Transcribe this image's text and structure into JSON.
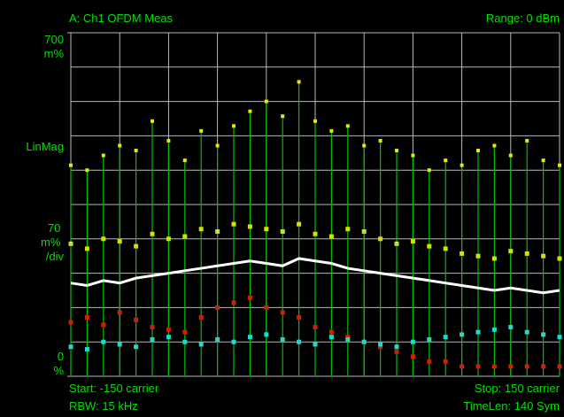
{
  "chart_data": {
    "type": "stem",
    "title": "A: Ch1 OFDM Meas",
    "range_label": "Range: 0 dBm",
    "start_label": "Start: -150  carrier",
    "stop_label": "Stop: 150  carrier",
    "rbw_label": "RBW: 15 kHz",
    "timelen_label": "TimeLen: 140  Sym",
    "scale_label": "LinMag",
    "per_div_label": [
      "70",
      "m%",
      "/div"
    ],
    "xlim": [
      -150,
      150
    ],
    "ylim": [
      0,
      700
    ],
    "yticks": [
      {
        "value": 700,
        "label": [
          "700",
          "m%"
        ]
      },
      {
        "value": 0,
        "label": [
          "0",
          "%"
        ]
      }
    ],
    "grid": {
      "x_divisions": 10,
      "y_divisions": 10
    },
    "x": [
      -150,
      -140,
      -130,
      -120,
      -110,
      -100,
      -90,
      -80,
      -70,
      -60,
      -50,
      -40,
      -30,
      -20,
      -10,
      0,
      10,
      20,
      30,
      40,
      50,
      60,
      70,
      80,
      90,
      100,
      110,
      120,
      130,
      140,
      150
    ],
    "series": [
      {
        "color": "#e8e800",
        "stem_color": "#00c000",
        "style": "stem",
        "values": [
          430,
          420,
          450,
          470,
          460,
          520,
          480,
          440,
          500,
          470,
          510,
          540,
          560,
          530,
          600,
          520,
          500,
          510,
          470,
          480,
          460,
          450,
          420,
          440,
          430,
          460,
          470,
          450,
          480,
          440,
          430
        ]
      },
      {
        "color": "#d8e000",
        "style": "dots",
        "values": [
          270,
          260,
          280,
          275,
          265,
          290,
          280,
          285,
          300,
          295,
          310,
          305,
          300,
          295,
          310,
          290,
          285,
          300,
          295,
          280,
          270,
          275,
          265,
          260,
          250,
          245,
          240,
          255,
          250,
          245,
          240
        ]
      },
      {
        "color": "#d02000",
        "style": "dots",
        "values": [
          110,
          120,
          105,
          130,
          115,
          100,
          95,
          90,
          120,
          140,
          150,
          160,
          140,
          130,
          120,
          100,
          90,
          80,
          70,
          60,
          50,
          40,
          30,
          30,
          20,
          20,
          20,
          20,
          20,
          20,
          20
        ]
      },
      {
        "color": "#20d8d0",
        "style": "dots",
        "values": [
          60,
          55,
          70,
          65,
          60,
          75,
          80,
          70,
          65,
          75,
          70,
          80,
          85,
          75,
          70,
          65,
          80,
          75,
          70,
          65,
          60,
          70,
          75,
          80,
          85,
          90,
          95,
          100,
          90,
          85,
          80
        ]
      },
      {
        "color": "#ffffff",
        "style": "line",
        "values": [
          190,
          185,
          195,
          190,
          200,
          205,
          210,
          215,
          220,
          225,
          230,
          235,
          230,
          225,
          240,
          235,
          230,
          220,
          215,
          210,
          205,
          200,
          195,
          190,
          185,
          180,
          175,
          180,
          175,
          170,
          175
        ]
      }
    ]
  }
}
